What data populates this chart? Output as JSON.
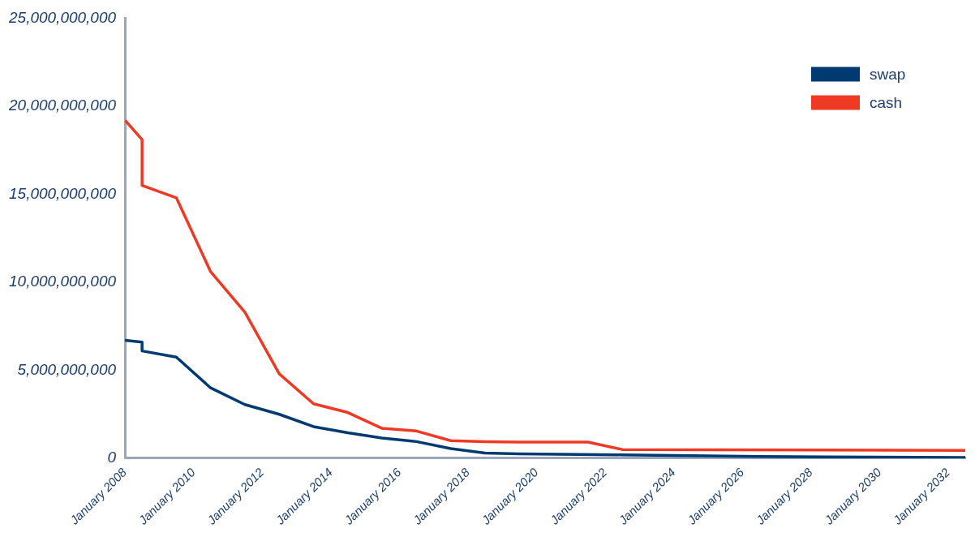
{
  "chart_data": {
    "type": "line",
    "xlim": [
      "2008-01",
      "2032-07"
    ],
    "xticks": [
      {
        "value": "2008-01",
        "label": "January 2008"
      },
      {
        "value": "2010-01",
        "label": "January 2010"
      },
      {
        "value": "2012-01",
        "label": "January 2012"
      },
      {
        "value": "2014-01",
        "label": "January 2014"
      },
      {
        "value": "2016-01",
        "label": "January 2016"
      },
      {
        "value": "2018-01",
        "label": "January 2018"
      },
      {
        "value": "2020-01",
        "label": "January 2020"
      },
      {
        "value": "2022-01",
        "label": "January 2022"
      },
      {
        "value": "2024-01",
        "label": "January 2024"
      },
      {
        "value": "2026-01",
        "label": "January 2026"
      },
      {
        "value": "2028-01",
        "label": "January 2028"
      },
      {
        "value": "2030-01",
        "label": "January 2030"
      },
      {
        "value": "2032-01",
        "label": "January 2032"
      }
    ],
    "ylim": [
      0,
      25000000000
    ],
    "yticks": [
      {
        "value": 0,
        "label": "0"
      },
      {
        "value": 5000000000,
        "label": "5,000,000,000"
      },
      {
        "value": 10000000000,
        "label": "10,000,000,000"
      },
      {
        "value": 15000000000,
        "label": "15,000,000,000"
      },
      {
        "value": 20000000000,
        "label": "20,000,000,000"
      },
      {
        "value": 25000000000,
        "label": "25,000,000,000"
      }
    ],
    "grid": false,
    "legend": "top right",
    "marker": "none",
    "line_style": "solid",
    "series": [
      {
        "name": "swap",
        "color": "#003a70",
        "x": [
          "2008-01",
          "2008-07",
          "2008-07",
          "2009-07",
          "2010-07",
          "2011-07",
          "2012-07",
          "2013-07",
          "2014-07",
          "2015-07",
          "2016-07",
          "2017-07",
          "2018-07",
          "2019-07",
          "2022-07",
          "2026-07",
          "2032-07"
        ],
        "values": [
          6700000000,
          6600000000,
          6100000000,
          5750000000,
          4000000000,
          3050000000,
          2500000000,
          1800000000,
          1450000000,
          1150000000,
          950000000,
          550000000,
          300000000,
          250000000,
          200000000,
          100000000,
          50000000
        ]
      },
      {
        "name": "cash",
        "color": "#ee3a24",
        "x": [
          "2008-01",
          "2008-07",
          "2008-07",
          "2009-07",
          "2010-07",
          "2011-07",
          "2012-07",
          "2013-07",
          "2014-07",
          "2015-07",
          "2016-07",
          "2017-07",
          "2018-07",
          "2019-07",
          "2021-07",
          "2022-07",
          "2032-07"
        ],
        "values": [
          19200000000,
          18100000000,
          15500000000,
          14800000000,
          10600000000,
          8300000000,
          4800000000,
          3100000000,
          2600000000,
          1700000000,
          1550000000,
          1000000000,
          950000000,
          920000000,
          920000000,
          500000000,
          450000000
        ]
      }
    ]
  }
}
